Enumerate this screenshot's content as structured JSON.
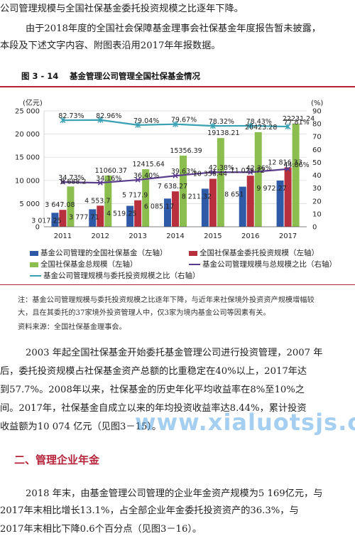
{
  "intro": {
    "line1": "公司管理规模与全国社保基金委托投资规模之比逐年下降。",
    "line2": "由于2018年度的全国社会保障基金理事会社保基金年度报告暂未披露，",
    "line3": "本段及下述文字内容、附图表沿用2017年年报数据。"
  },
  "figure": {
    "number": "图 3 - 14",
    "title": "基金管理公司管理全国社保基金情况"
  },
  "chart_data": {
    "type": "bar",
    "categories": [
      "2011",
      "2012",
      "2013",
      "2014",
      "2015",
      "2016",
      "2017"
    ],
    "left_unit": "(亿元)",
    "right_unit": "(%)",
    "left_ticks": [
      "0",
      "5 000",
      "10 000",
      "15 000",
      "20 000",
      "25 000"
    ],
    "right_ticks": [
      "0",
      "10",
      "20",
      "30",
      "40",
      "50",
      "60",
      "70",
      "80",
      "90"
    ],
    "ylim": [
      0,
      25000
    ],
    "y2lim": [
      0,
      90
    ],
    "series": [
      {
        "name": "基金公司管理的全国社保基金（左轴）",
        "color": "#2e5aa8",
        "values": [
          3017.25,
          3777.71,
          4519.25,
          6085.17,
          8211.32,
          8651,
          9972.27
        ],
        "labels": [
          "3 017.25",
          "3 777.71",
          "4 519.25",
          "6 085.17",
          "8 211.32",
          "8 651",
          "9 972.27"
        ]
      },
      {
        "name": "全国社保基金委托投资规模（左轴）",
        "color": "#b8303d",
        "values": [
          3647.08,
          4553.7,
          5717.9,
          7638.27,
          10356.44,
          11029.72,
          12816.33
        ],
        "labels": [
          "3 647.08",
          "4 553.7",
          "5 717.9",
          "7 638.27",
          "10 356.44",
          "11 029.72",
          "12 816.33"
        ]
      },
      {
        "name": "全国社保基金总规模（左轴）",
        "color": "#8cbd4f",
        "values": [
          8688.2,
          11060.37,
          12415.64,
          15356.39,
          19138.21,
          20423.28,
          22231.24
        ],
        "labels": [
          "8 688.2",
          "11060.37",
          "12415.64",
          "15356.39",
          "19138.21",
          "20423.28",
          "22231.24"
        ]
      }
    ],
    "lines": [
      {
        "name": "基金公司管理规模与总规模之比（右轴）",
        "color": "#5b3b8c",
        "values": [
          34.73,
          34.16,
          36.4,
          39.63,
          42.38,
          42.36,
          44.86
        ],
        "labels": [
          "34.73%",
          "34.16%",
          "36.40%",
          "39.63%",
          "42.38%",
          "42.36%",
          "44.86%"
        ]
      },
      {
        "name": "基金公司管理规模与委托投资规模之比（右轴）",
        "color": "#3aa0b4",
        "values": [
          82.73,
          82.96,
          79.04,
          79.67,
          78.32,
          78.43,
          77.81
        ],
        "labels": [
          "82.73%",
          "82.96%",
          "79.04%",
          "79.67%",
          "78.32%",
          "78.43%",
          "77.81%"
        ]
      }
    ]
  },
  "notes": {
    "line1": "注：基金公司管理规模与委托投资规模之比逐年下降，与近年来社保境外投资资产规模增幅较",
    "line2": "大，且在其委托的37家境外投资管理人中，仅3家为境内基金公司等因素有关。",
    "source": "资料来源：全国社保基金理事会。"
  },
  "body1": {
    "line1": "2003 年起全国社保基金开始委托基金管理公司进行投资管理，2007 年",
    "line2": "后，委托投资规模占社保基金资产总额的比重稳定在40%以上，2017年达",
    "line3": "到57.7%。2008年以来，社保基金的历史年化平均收益率在8%至10%之",
    "line4": "间。2017年，社保基金自成立以来的年均投资收益率达8.44%，累计投资",
    "line5": "收益额为10 074 亿元（见图3－15）。"
  },
  "watermark": "www.xialuotsjs.com",
  "section": {
    "title": "二、管理企业年金"
  },
  "body2": {
    "line1": "2018 年末，由基金管理公司管理的企业年金资产规模为5 169亿元，与",
    "line2": "2017年末相比增长13.1%，占全部企业年金委托投资资产的36.3%，与",
    "line3": "2017年末相比下降0.6个百分点（见图3－16）。"
  }
}
